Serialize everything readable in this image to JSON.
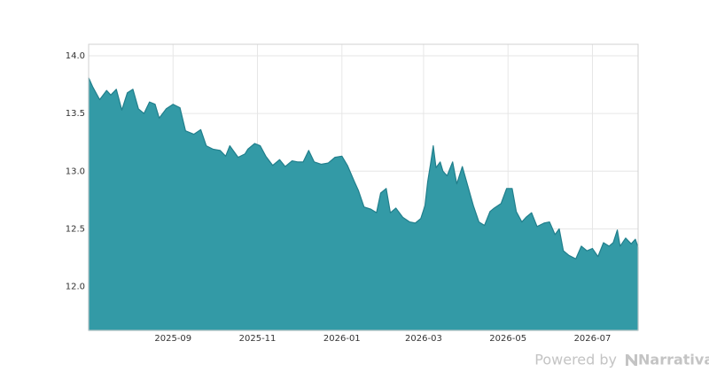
{
  "chart_data": {
    "type": "area",
    "x": [
      0,
      3,
      8,
      13,
      16,
      20,
      24,
      28,
      32,
      36,
      40,
      44,
      48,
      51,
      56,
      61,
      66,
      70,
      76,
      81,
      85,
      90,
      95,
      99,
      102,
      108,
      113,
      115,
      120,
      124,
      128,
      133,
      138,
      142,
      147,
      151,
      155,
      159,
      163,
      168,
      173,
      178,
      183,
      187,
      192,
      195,
      199,
      204,
      208,
      211,
      215,
      218,
      222,
      227,
      232,
      236,
      240,
      243,
      245,
      247,
      249,
      251,
      254,
      256,
      259,
      263,
      266,
      270,
      274,
      278,
      282,
      286,
      290,
      293,
      298,
      302,
      306,
      309,
      313,
      316,
      320,
      324,
      329,
      333,
      337,
      340,
      343,
      347,
      352,
      356,
      360,
      364,
      368,
      372,
      376,
      379,
      382,
      384,
      388,
      392,
      395,
      397
    ],
    "values": [
      13.81,
      13.73,
      13.62,
      13.7,
      13.66,
      13.71,
      13.53,
      13.68,
      13.71,
      13.54,
      13.5,
      13.6,
      13.58,
      13.46,
      13.54,
      13.58,
      13.55,
      13.35,
      13.32,
      13.36,
      13.22,
      13.19,
      13.18,
      13.13,
      13.22,
      13.12,
      13.15,
      13.19,
      13.24,
      13.22,
      13.13,
      13.05,
      13.1,
      13.04,
      13.09,
      13.08,
      13.08,
      13.18,
      13.08,
      13.06,
      13.07,
      13.12,
      13.13,
      13.05,
      12.91,
      12.83,
      12.69,
      12.67,
      12.64,
      12.81,
      12.85,
      12.64,
      12.68,
      12.6,
      12.56,
      12.55,
      12.59,
      12.7,
      12.91,
      13.06,
      13.22,
      13.03,
      13.08,
      13.0,
      12.96,
      13.08,
      12.89,
      13.04,
      12.87,
      12.7,
      12.56,
      12.53,
      12.65,
      12.68,
      12.72,
      12.85,
      12.85,
      12.65,
      12.56,
      12.6,
      12.64,
      12.52,
      12.55,
      12.56,
      12.45,
      12.5,
      12.31,
      12.27,
      12.24,
      12.35,
      12.31,
      12.33,
      12.26,
      12.38,
      12.35,
      12.38,
      12.49,
      12.35,
      12.42,
      12.37,
      12.41,
      12.34
    ],
    "color": "#339aa6",
    "line_color": "#217f8c",
    "xlim": [
      0,
      397
    ],
    "xticks": [
      {
        "value": 61,
        "label": "2025-09"
      },
      {
        "value": 122,
        "label": "2025-11"
      },
      {
        "value": 183,
        "label": "2026-01"
      },
      {
        "value": 242,
        "label": "2026-03"
      },
      {
        "value": 303,
        "label": "2026-05"
      },
      {
        "value": 364,
        "label": "2026-07"
      }
    ],
    "ylim": [
      11.62,
      14.1
    ],
    "yticks": [
      {
        "value": 12.0,
        "label": "12.0"
      },
      {
        "value": 12.5,
        "label": "12.5"
      },
      {
        "value": 13.0,
        "label": "13.0"
      },
      {
        "value": 13.5,
        "label": "13.5"
      },
      {
        "value": 14.0,
        "label": "14.0"
      }
    ],
    "grid": true
  },
  "watermark": {
    "prefix": "Powered by",
    "brand": "Narrativa"
  }
}
